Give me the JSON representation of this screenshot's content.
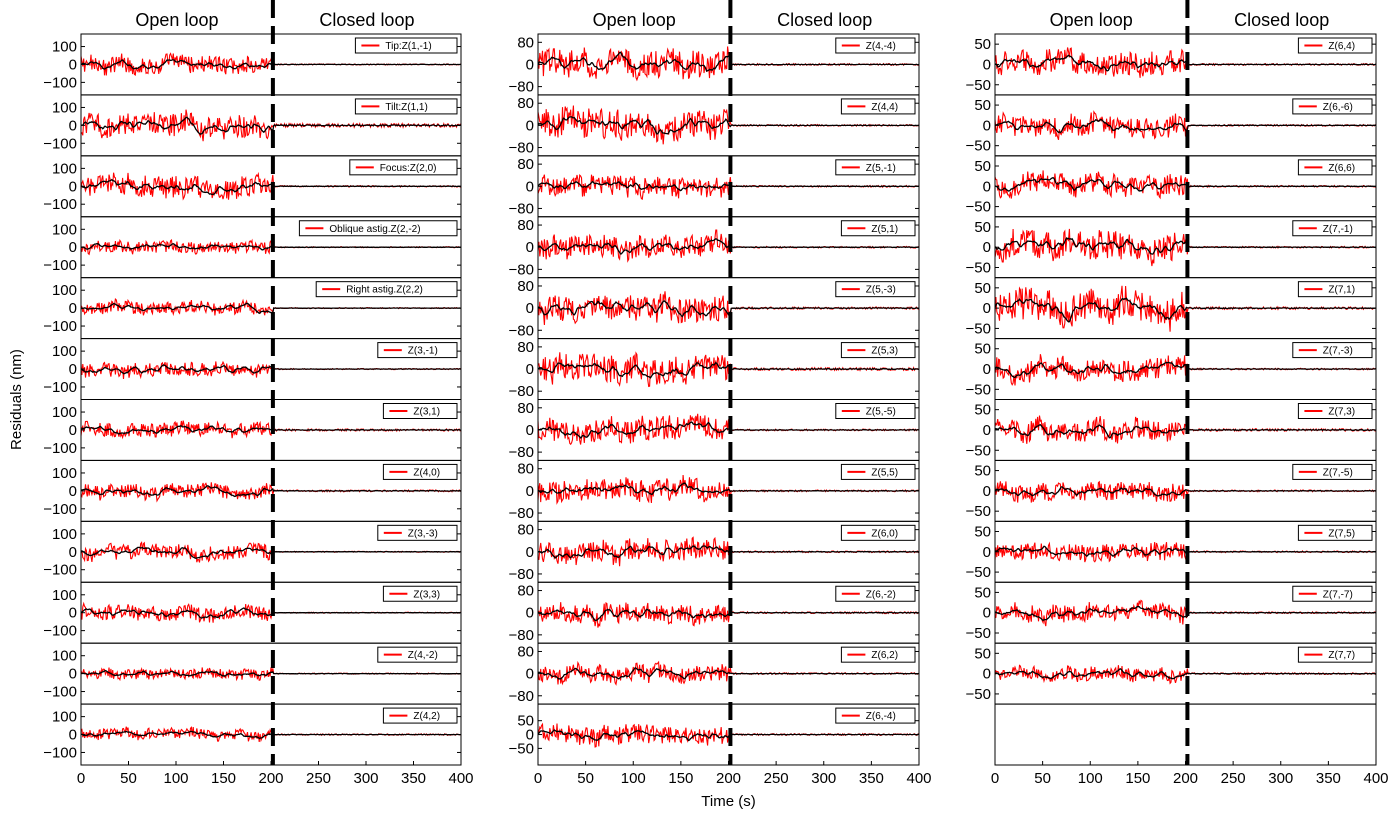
{
  "chart_data": {
    "type": "line",
    "ylabel": "Residuals (nm)",
    "xlabel": "Time (s)",
    "xlim": [
      0,
      400
    ],
    "xticks": [
      "0",
      "50",
      "100",
      "150",
      "200",
      "250",
      "300",
      "350",
      "400"
    ],
    "phase_boundary_x": 202,
    "phase_headers": [
      "Open loop",
      "Closed loop"
    ],
    "colors": {
      "raw": "#ff0000",
      "filtered": "#000000",
      "boundary": "#000000"
    },
    "columns": [
      {
        "ylim": [
          -170,
          170
        ],
        "panels": [
          {
            "legend": "Tip:Z(1,-1)",
            "yticks": [
              "100",
              "0",
              "−100"
            ],
            "open_amplitude": 55,
            "closed_amplitude": 3
          },
          {
            "legend": "Tilt:Z(1,1)",
            "yticks": [
              "100",
              "0",
              "−100"
            ],
            "open_amplitude": 75,
            "closed_amplitude": 10
          },
          {
            "legend": "Focus:Z(2,0)",
            "yticks": [
              "100",
              "0",
              "−100"
            ],
            "open_amplitude": 70,
            "closed_amplitude": 4
          },
          {
            "legend": "Oblique astig.Z(2,-2)",
            "yticks": [
              "100",
              "0",
              "−100"
            ],
            "open_amplitude": 40,
            "closed_amplitude": 3
          },
          {
            "legend": "Right astig.Z(2,2)",
            "yticks": [
              "100",
              "0",
              "−100"
            ],
            "open_amplitude": 40,
            "closed_amplitude": 3
          },
          {
            "legend": "Z(3,-1)",
            "yticks": [
              "100",
              "0",
              "−100"
            ],
            "open_amplitude": 45,
            "closed_amplitude": 3
          },
          {
            "legend": "Z(3,1)",
            "yticks": [
              "100",
              "0",
              "−100"
            ],
            "open_amplitude": 45,
            "closed_amplitude": 6
          },
          {
            "legend": "Z(4,0)",
            "yticks": [
              "100",
              "0",
              "−100"
            ],
            "open_amplitude": 45,
            "closed_amplitude": 5
          },
          {
            "legend": "Z(3,-3)",
            "yticks": [
              "100",
              "0",
              "−100"
            ],
            "open_amplitude": 50,
            "closed_amplitude": 3
          },
          {
            "legend": "Z(3,3)",
            "yticks": [
              "100",
              "0",
              "−100"
            ],
            "open_amplitude": 50,
            "closed_amplitude": 3
          },
          {
            "legend": "Z(4,-2)",
            "yticks": [
              "100",
              "0",
              "−100"
            ],
            "open_amplitude": 35,
            "closed_amplitude": 3
          },
          {
            "legend": "Z(4,2)",
            "yticks": [
              "100",
              "0",
              "−100"
            ],
            "open_amplitude": 35,
            "closed_amplitude": 4
          }
        ]
      },
      {
        "ylim": [
          -110,
          110
        ],
        "panels": [
          {
            "legend": "Z(4,-4)",
            "yticks": [
              "80",
              "0",
              "−80"
            ],
            "open_amplitude": 55,
            "closed_amplitude": 3
          },
          {
            "legend": "Z(4,4)",
            "yticks": [
              "80",
              "0",
              "−80"
            ],
            "open_amplitude": 60,
            "closed_amplitude": 3
          },
          {
            "legend": "Z(5,-1)",
            "yticks": [
              "80",
              "0",
              "−80"
            ],
            "open_amplitude": 45,
            "closed_amplitude": 3
          },
          {
            "legend": "Z(5,1)",
            "yticks": [
              "80",
              "0",
              "−80"
            ],
            "open_amplitude": 45,
            "closed_amplitude": 3
          },
          {
            "legend": "Z(5,-3)",
            "yticks": [
              "80",
              "0",
              "−80"
            ],
            "open_amplitude": 55,
            "closed_amplitude": 4
          },
          {
            "legend": "Z(5,3)",
            "yticks": [
              "80",
              "0",
              "−80"
            ],
            "open_amplitude": 55,
            "closed_amplitude": 5
          },
          {
            "legend": "Z(5,-5)",
            "yticks": [
              "80",
              "0",
              "−80"
            ],
            "open_amplitude": 50,
            "closed_amplitude": 3
          },
          {
            "legend": "Z(5,5)",
            "yticks": [
              "80",
              "0",
              "−80"
            ],
            "open_amplitude": 45,
            "closed_amplitude": 3
          },
          {
            "legend": "Z(6,0)",
            "yticks": [
              "80",
              "0",
              "−80"
            ],
            "open_amplitude": 45,
            "closed_amplitude": 3
          },
          {
            "legend": "Z(6,-2)",
            "yticks": [
              "80",
              "0",
              "−80"
            ],
            "open_amplitude": 40,
            "closed_amplitude": 3
          },
          {
            "legend": "Z(6,2)",
            "yticks": [
              "80",
              "0",
              "−80"
            ],
            "open_amplitude": 35,
            "closed_amplitude": 3
          },
          {
            "legend": "Z(6,-4)",
            "yticks": [
              "50",
              "0",
              "−50"
            ],
            "open_amplitude": 40,
            "closed_amplitude": 3
          }
        ]
      },
      {
        "ylim": [
          -75,
          75
        ],
        "panels": [
          {
            "legend": "Z(6,4)",
            "yticks": [
              "50",
              "0",
              "−50"
            ],
            "open_amplitude": 35,
            "closed_amplitude": 2
          },
          {
            "legend": "Z(6,-6)",
            "yticks": [
              "50",
              "0",
              "−50"
            ],
            "open_amplitude": 30,
            "closed_amplitude": 2
          },
          {
            "legend": "Z(6,6)",
            "yticks": [
              "50",
              "0",
              "−50"
            ],
            "open_amplitude": 30,
            "closed_amplitude": 2
          },
          {
            "legend": "Z(7,-1)",
            "yticks": [
              "50",
              "0",
              "−50"
            ],
            "open_amplitude": 40,
            "closed_amplitude": 2
          },
          {
            "legend": "Z(7,1)",
            "yticks": [
              "50",
              "0",
              "−50"
            ],
            "open_amplitude": 45,
            "closed_amplitude": 3
          },
          {
            "legend": "Z(7,-3)",
            "yticks": [
              "50",
              "0",
              "−50"
            ],
            "open_amplitude": 30,
            "closed_amplitude": 2
          },
          {
            "legend": "Z(7,3)",
            "yticks": [
              "50",
              "0",
              "−50"
            ],
            "open_amplitude": 30,
            "closed_amplitude": 3
          },
          {
            "legend": "Z(7,-5)",
            "yticks": [
              "50",
              "0",
              "−50"
            ],
            "open_amplitude": 25,
            "closed_amplitude": 2
          },
          {
            "legend": "Z(7,5)",
            "yticks": [
              "50",
              "0",
              "−50"
            ],
            "open_amplitude": 25,
            "closed_amplitude": 2
          },
          {
            "legend": "Z(7,-7)",
            "yticks": [
              "50",
              "0",
              "−50"
            ],
            "open_amplitude": 25,
            "closed_amplitude": 2
          },
          {
            "legend": "Z(7,7)",
            "yticks": [
              "50",
              "0",
              "−50"
            ],
            "open_amplitude": 20,
            "closed_amplitude": 2
          },
          {
            "legend": "",
            "yticks": [],
            "open_amplitude": 0,
            "closed_amplitude": 0
          }
        ]
      }
    ]
  }
}
